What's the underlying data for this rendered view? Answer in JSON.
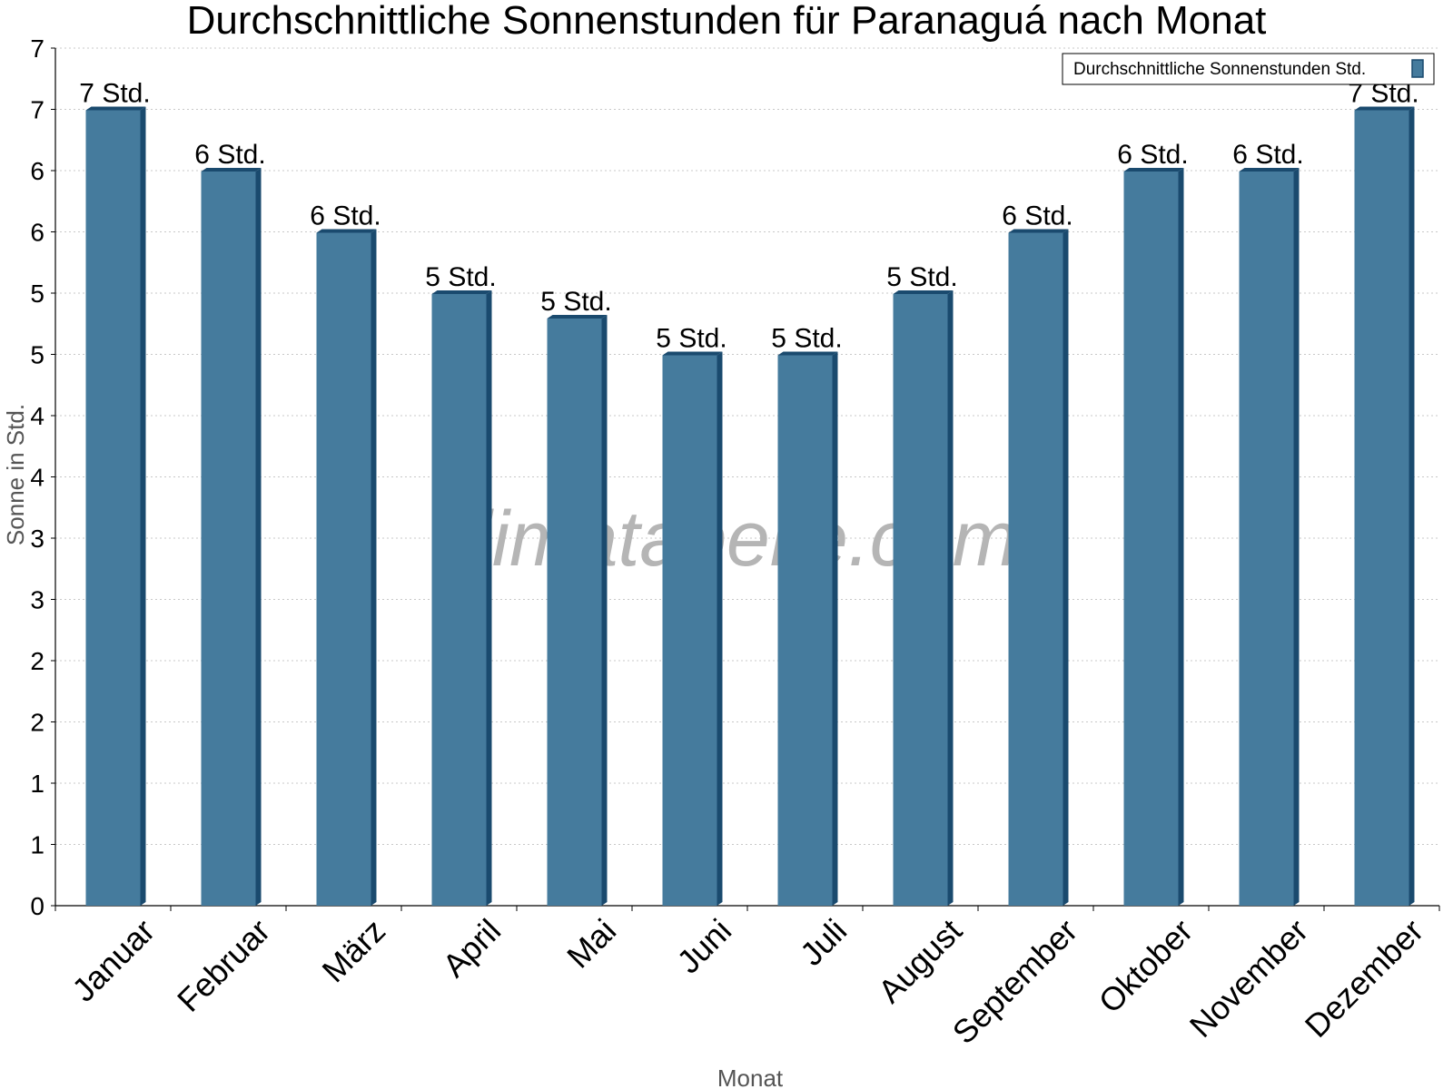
{
  "chart_data": {
    "type": "bar",
    "title": "Durchschnittliche Sonnenstunden für Paranaguá nach Monat",
    "xlabel": "Monat",
    "ylabel": "Sonne in Std.",
    "categories": [
      "Januar",
      "Februar",
      "März",
      "April",
      "Mai",
      "Juni",
      "Juli",
      "August",
      "September",
      "Oktober",
      "November",
      "Dezember"
    ],
    "series": [
      {
        "name": "Durchschnittliche Sonnenstunden Std.",
        "values": [
          6.5,
          6.0,
          5.5,
          5.0,
          4.8,
          4.5,
          4.5,
          5.0,
          5.5,
          6.0,
          6.0,
          6.5
        ],
        "labels": [
          "7 Std.",
          "6 Std.",
          "6 Std.",
          "5 Std.",
          "5 Std.",
          "5 Std.",
          "5 Std.",
          "5 Std.",
          "6 Std.",
          "6 Std.",
          "6 Std.",
          "7 Std."
        ],
        "color": "#457b9d",
        "side_color": "#1a4a6e"
      }
    ],
    "ylim": [
      0,
      7
    ],
    "yticks": [
      0,
      0.5,
      1,
      1.5,
      2,
      2.5,
      3,
      3.5,
      4,
      4.5,
      5,
      5.5,
      6,
      6.5,
      7
    ],
    "ytick_labels": [
      "0",
      "1",
      "1",
      "2",
      "2",
      "3",
      "3",
      "4",
      "4",
      "5",
      "5",
      "6",
      "6",
      "7",
      "7"
    ],
    "grid": true,
    "legend_position": "top-right",
    "watermark": "klimatabelle.com"
  }
}
